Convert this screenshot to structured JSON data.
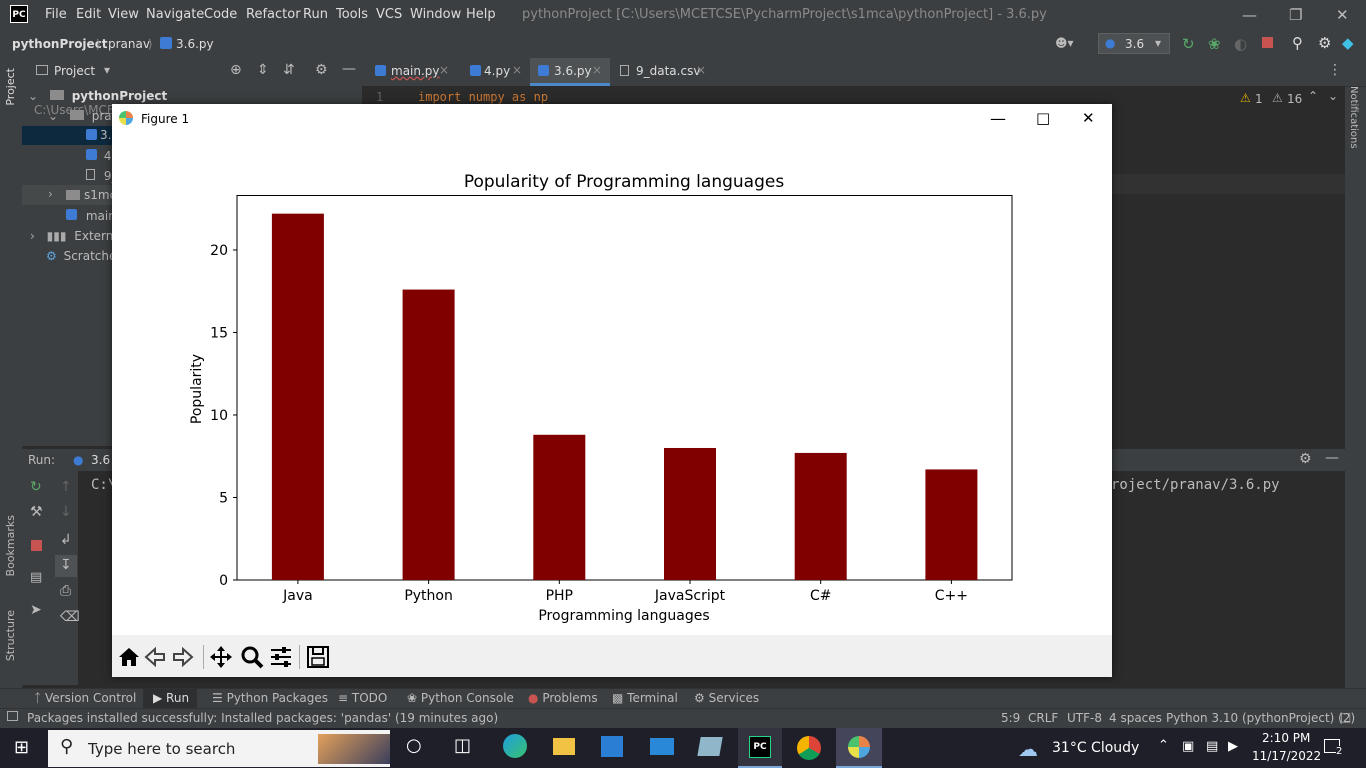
{
  "app": {
    "logo": "PC",
    "menu": [
      "File",
      "Edit",
      "View",
      "Navigate",
      "Code",
      "Refactor",
      "Run",
      "Tools",
      "VCS",
      "Window",
      "Help"
    ],
    "window_title": "pythonProject [C:\\Users\\MCETCSE\\PycharmProject\\s1mca\\pythonProject] - 3.6.py",
    "breadcrumb": [
      "pythonProject",
      "pranav",
      "3.6.py"
    ],
    "run_config": "3.6"
  },
  "project_panel": {
    "title": "Project",
    "tree": [
      {
        "label": "pythonProject",
        "path": "C:\\Users\\MCETCSE\\PycharmProject\\s1m"
      },
      {
        "label": "prana"
      },
      {
        "label": "3."
      },
      {
        "label": "4."
      },
      {
        "label": "9_"
      },
      {
        "label": "s1mc"
      },
      {
        "label": "main."
      },
      {
        "label": "External"
      },
      {
        "label": "Scratche"
      }
    ]
  },
  "editor": {
    "tabs": [
      "main.py",
      "4.py",
      "3.6.py",
      "9_data.csv"
    ],
    "active_tab": "3.6.py",
    "line_number": "1",
    "code_line": "import numpy as np",
    "warnings": "1",
    "weak_warnings": "16"
  },
  "run_panel": {
    "label": "Run:",
    "config": "3.6",
    "console_left": "C:\\",
    "console_right": "roject/pranav/3.6.py"
  },
  "side_labels": {
    "project": "Project",
    "bookmarks": "Bookmarks",
    "structure": "Structure",
    "notifications": "Notifications"
  },
  "figure": {
    "window_title": "Figure 1",
    "toolbar_icons": [
      "home-icon",
      "back-icon",
      "forward-icon",
      "pan-icon",
      "zoom-icon",
      "configure-icon",
      "save-icon"
    ]
  },
  "chart_data": {
    "type": "bar",
    "title": "Popularity of Programming languages",
    "xlabel": "Programming languages",
    "ylabel": "Popularity",
    "categories": [
      "Java",
      "Python",
      "PHP",
      "JavaScript",
      "C#",
      "C++"
    ],
    "values": [
      22.2,
      17.6,
      8.8,
      8.0,
      7.7,
      6.7
    ],
    "ylim": [
      0,
      23.3
    ],
    "yticks": [
      0,
      5,
      10,
      15,
      20
    ],
    "bar_color": "#800000",
    "grid": false
  },
  "tool_windows": [
    "Version Control",
    "Run",
    "Python Packages",
    "TODO",
    "Python Console",
    "Problems",
    "Terminal",
    "Services"
  ],
  "status": {
    "message": "Packages installed successfully: Installed packages: 'pandas' (19 minutes ago)",
    "position": "5:9",
    "line_sep": "CRLF",
    "encoding": "UTF-8",
    "indent": "4 spaces",
    "interpreter": "Python 3.10 (pythonProject) (2)"
  },
  "taskbar": {
    "search_placeholder": "Type here to search",
    "weather": "31°C  Cloudy",
    "time": "2:10 PM",
    "date": "11/17/2022",
    "notifications": "2"
  }
}
